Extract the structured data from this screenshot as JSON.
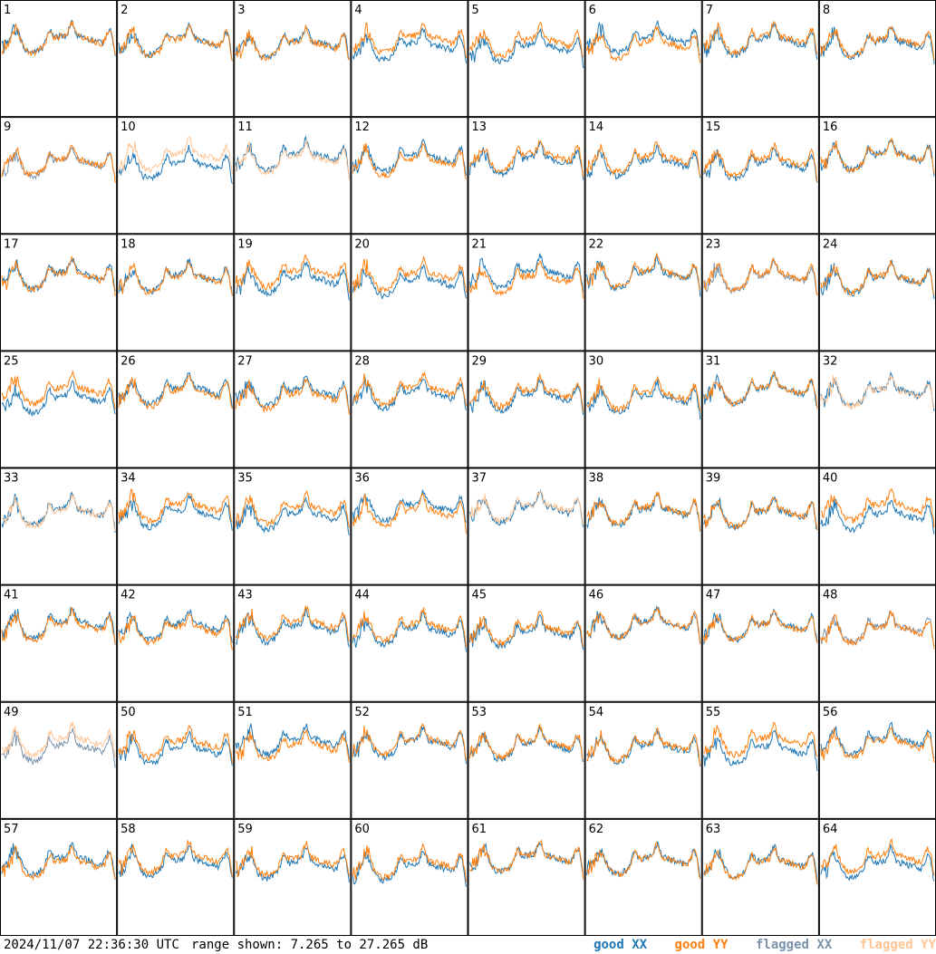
{
  "chart_data": {
    "type": "line",
    "grid": {
      "rows": 8,
      "cols": 8
    },
    "panels": [
      "1",
      "2",
      "3",
      "4",
      "5",
      "6",
      "7",
      "8",
      "9",
      "10",
      "11",
      "12",
      "13",
      "14",
      "15",
      "16",
      "17",
      "18",
      "19",
      "20",
      "21",
      "22",
      "23",
      "24",
      "25",
      "26",
      "27",
      "28",
      "29",
      "30",
      "31",
      "32",
      "33",
      "34",
      "35",
      "36",
      "37",
      "38",
      "39",
      "40",
      "41",
      "42",
      "43",
      "44",
      "45",
      "46",
      "47",
      "48",
      "49",
      "50",
      "51",
      "52",
      "53",
      "54",
      "55",
      "56",
      "57",
      "58",
      "59",
      "60",
      "61",
      "62",
      "63",
      "64"
    ],
    "y_range_db": [
      7.265,
      27.265
    ],
    "series_legend": [
      {
        "name": "good XX",
        "color": "#1f77b4"
      },
      {
        "name": "good YY",
        "color": "#ff7f0e"
      },
      {
        "name": "flagged XX",
        "color": "#7a93ad"
      },
      {
        "name": "flagged YY",
        "color": "#ffc494"
      }
    ],
    "panel_status": {
      "flagged_xx": [
        "9",
        "23",
        "48",
        "49"
      ],
      "flagged_yy": [
        "10",
        "11",
        "32",
        "33",
        "37",
        "49"
      ]
    }
  },
  "footer": {
    "timestamp": "2024/11/07 22:36:30 UTC",
    "range_text": "range shown: 7.265 to 27.265 dB",
    "legend_good_xx": "good XX",
    "legend_good_yy": "good YY",
    "legend_flagged_xx": "flagged XX",
    "legend_flagged_yy": "flagged YY"
  }
}
